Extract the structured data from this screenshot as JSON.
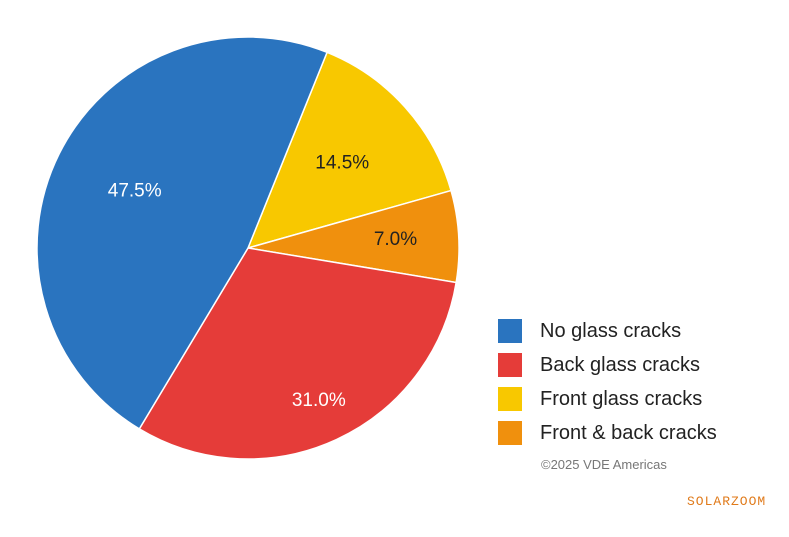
{
  "chart_data": {
    "type": "pie",
    "slices": [
      {
        "label": "No glass cracks",
        "value": 47.5,
        "value_label": "47.5%",
        "color": "#2a74bf",
        "label_color": "#ffffff"
      },
      {
        "label": "Back glass cracks",
        "value": 31.0,
        "value_label": "31.0%",
        "color": "#e53c39",
        "label_color": "#ffffff"
      },
      {
        "label": "Front glass cracks",
        "value": 14.5,
        "value_label": "14.5%",
        "color": "#f8c800",
        "label_color": "#222222"
      },
      {
        "label": "Front & back cracks",
        "value": 7.0,
        "value_label": "7.0%",
        "color": "#f0900d",
        "label_color": "#222222"
      }
    ],
    "legend_placement": "bottom-right"
  },
  "copyright": "©2025 VDE Americas",
  "watermark": "SOLARZOOM"
}
